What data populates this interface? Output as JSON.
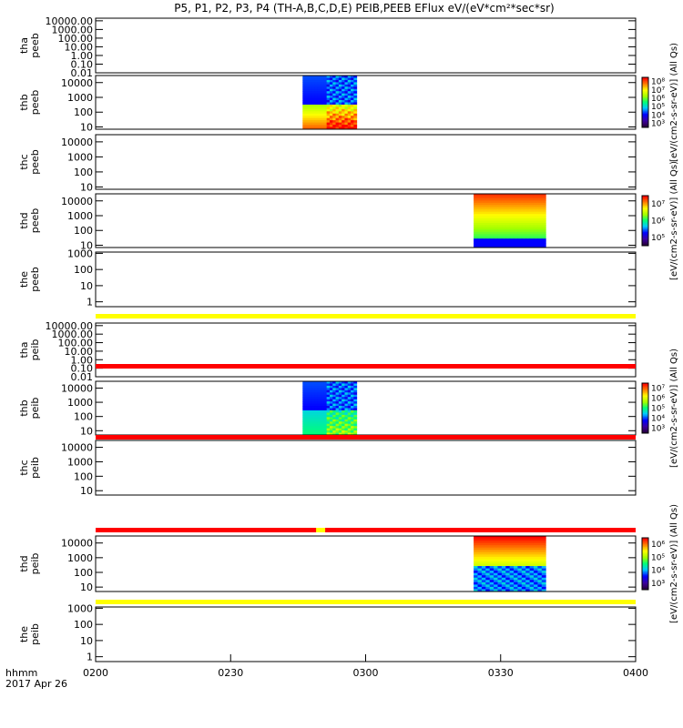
{
  "chart_data": {
    "type": "heatmap",
    "title": "P5, P1, P2, P3, P4 (TH-A,B,C,D,E) PEIB,PEEB EFlux eV/(eV*cm²*sec*sr)",
    "x_axis": {
      "label": "hhmm",
      "date": "2017 Apr 26",
      "range": [
        "02:00",
        "04:00"
      ],
      "ticks": [
        "0200",
        "0230",
        "0300",
        "0330",
        "0400"
      ]
    },
    "panels": [
      {
        "probe": "tha",
        "product": "peeb",
        "yscale": "log",
        "yrange": [
          0.01,
          20000
        ],
        "yticks": [
          "10000.00",
          "1000.00",
          "100.00",
          "10.00",
          "1.00",
          "0.10",
          "0.01"
        ],
        "spectrogram": null,
        "colorbar": null
      },
      {
        "probe": "thb",
        "product": "peeb",
        "yscale": "log",
        "yrange": [
          7,
          30000
        ],
        "yticks": [
          "10000",
          "1000",
          "100",
          "10"
        ],
        "spectrogram": {
          "start": "02:46",
          "end": "02:58"
        },
        "colorbar": {
          "label": "[eV/(cm2-s-sr-eV)] (All Qs)",
          "ticks": [
            "10⁸",
            "10⁷",
            "10⁶",
            "10⁵",
            "10⁴",
            "10³"
          ],
          "zrange": [
            1000,
            100000000
          ]
        }
      },
      {
        "probe": "thc",
        "product": "peeb",
        "yscale": "log",
        "yrange": [
          7,
          30000
        ],
        "yticks": [
          "10000",
          "1000",
          "100",
          "10"
        ],
        "spectrogram": null,
        "colorbar": {
          "label": "[eV/(cm2-s-sr-eV)] (All Qs)"
        }
      },
      {
        "probe": "thd",
        "product": "peeb",
        "yscale": "log",
        "yrange": [
          7,
          30000
        ],
        "yticks": [
          "10000",
          "1000",
          "100",
          "10"
        ],
        "spectrogram": {
          "start": "03:24",
          "end": "03:40"
        },
        "colorbar": {
          "label": "[eV/(cm2-s-sr-eV)] (All Qs)",
          "ticks": [
            "10⁷",
            "10⁶",
            "10⁵"
          ],
          "zrange": [
            50000,
            50000000
          ]
        }
      },
      {
        "probe": "the",
        "product": "peeb",
        "yscale": "log",
        "yrange": [
          0.5,
          1200
        ],
        "yticks": [
          "1000",
          "100",
          "10",
          "1"
        ],
        "spectrogram": null,
        "colorbar": {
          "label": "[eV/(cm2-s-sr-eV)] (All Qs)"
        }
      },
      {
        "probe": "tha",
        "product": "peib",
        "yscale": "log",
        "yrange": [
          0.01,
          20000
        ],
        "yticks": [
          "10000.00",
          "1000.00",
          "100.00",
          "10.00",
          "1.00",
          "0.10",
          "0.01"
        ],
        "spectrogram": null,
        "colorbar": null
      },
      {
        "probe": "thb",
        "product": "peib",
        "yscale": "log",
        "yrange": [
          5,
          30000
        ],
        "yticks": [
          "10000",
          "1000",
          "100",
          "10"
        ],
        "spectrogram": {
          "start": "02:46",
          "end": "02:58"
        },
        "colorbar": {
          "label": "[eV/(cm2-s-sr-eV)] (All Qs)",
          "ticks": [
            "10⁷",
            "10⁶",
            "10⁵",
            "10⁴",
            "10³"
          ],
          "zrange": [
            1000,
            10000000
          ]
        }
      },
      {
        "probe": "thc",
        "product": "peib",
        "yscale": "log",
        "yrange": [
          5,
          30000
        ],
        "yticks": [
          "10000",
          "1000",
          "100",
          "10"
        ],
        "spectrogram": null,
        "colorbar": {
          "label": "[eV/(cm2-s-sr-eV)] (All Qs)"
        }
      },
      {
        "probe": "thd",
        "product": "peib",
        "yscale": "log",
        "yrange": [
          5,
          30000
        ],
        "yticks": [
          "10000",
          "1000",
          "100",
          "10"
        ],
        "spectrogram": {
          "start": "03:24",
          "end": "03:40"
        },
        "colorbar": {
          "label": "[eV/(cm2-s-sr-eV)] (All Qs)",
          "ticks": [
            "10⁶",
            "10⁵",
            "10⁴",
            "10³"
          ],
          "zrange": [
            500,
            1000000
          ]
        }
      },
      {
        "probe": "the",
        "product": "peib",
        "yscale": "log",
        "yrange": [
          0.5,
          1200
        ],
        "yticks": [
          "1000",
          "100",
          "10",
          "1"
        ],
        "spectrogram": null,
        "colorbar": {
          "label": "[eV/(cm2-s-sr-eV)] (All Qs)"
        }
      }
    ],
    "separator_strips": [
      {
        "after_panel": 5,
        "color": "#ffff00"
      },
      {
        "after_panel": 6,
        "color": "#ff0000"
      },
      {
        "after_panel": 7,
        "color": "#ff0000"
      },
      {
        "after_panel": 8,
        "color": "#ff0000",
        "gap_color": "#ffff00",
        "gap_time": "02:50"
      },
      {
        "after_panel": 9,
        "color": "#ffff00"
      }
    ]
  }
}
